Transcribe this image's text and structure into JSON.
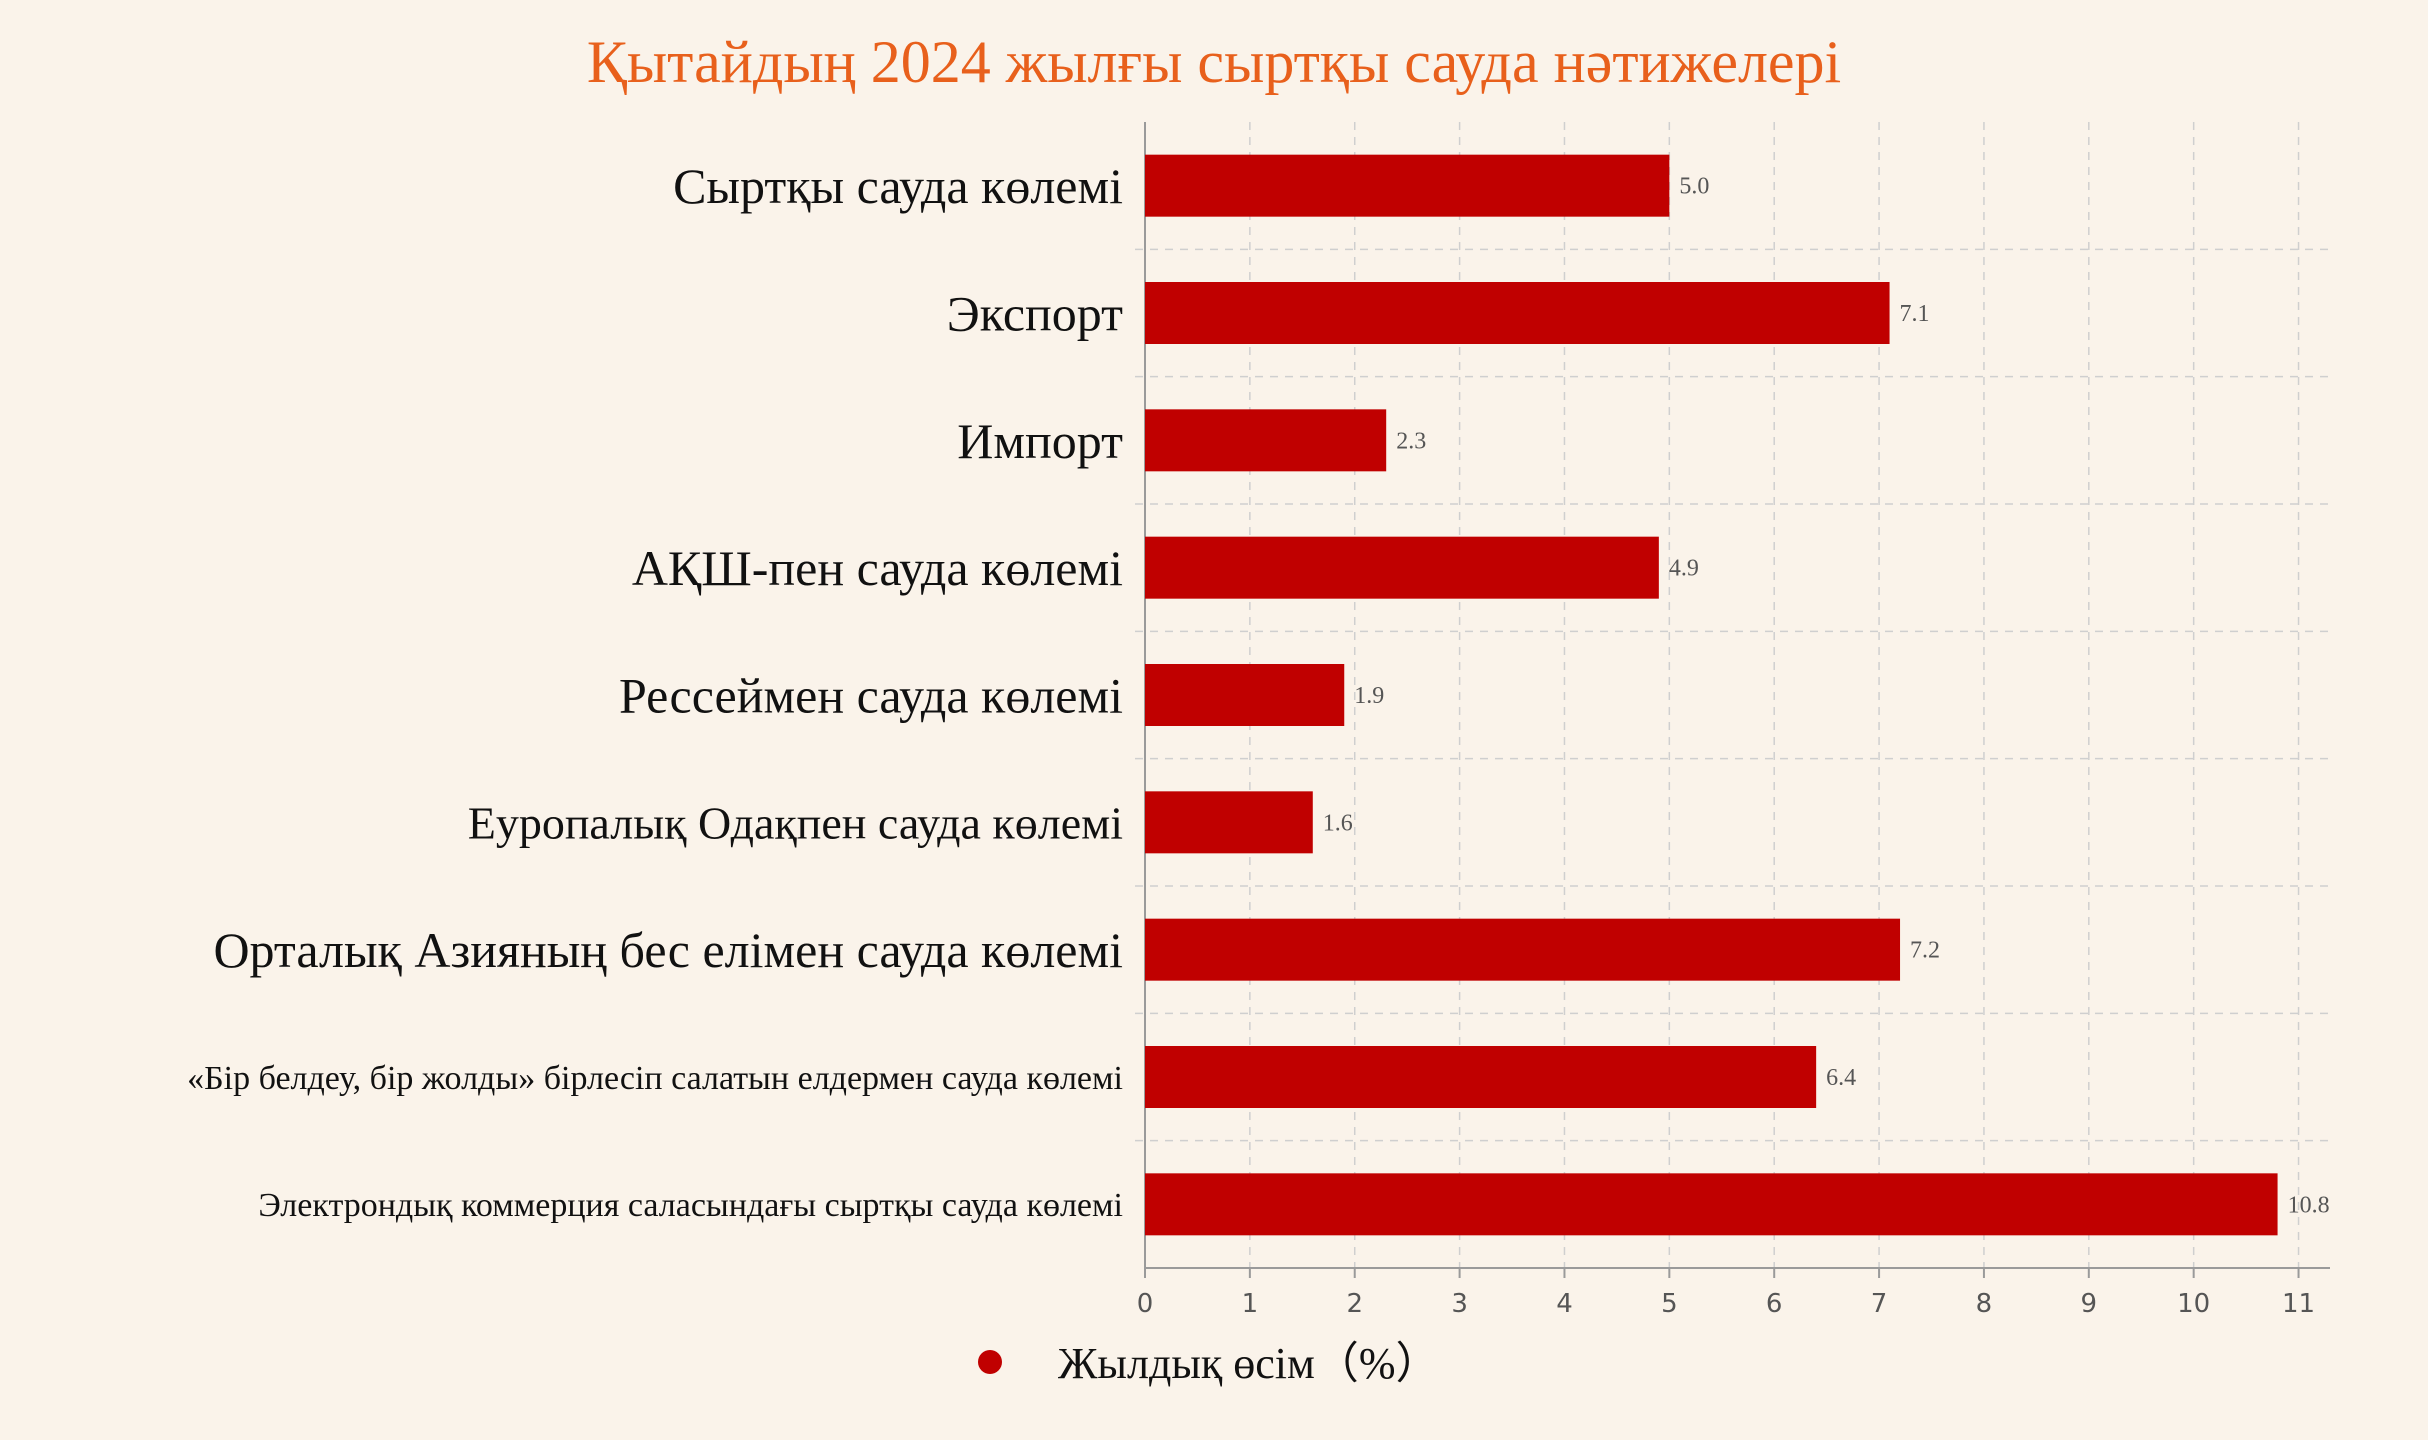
{
  "chart_data": {
    "type": "bar",
    "orientation": "horizontal",
    "title": "Қытайдың 2024 жылғы сыртқы сауда нәтижелері",
    "categories": [
      "Сыртқы сауда көлемі",
      "Экспорт",
      "Импорт",
      "АҚШ-пен сауда көлемі",
      "Рессеймен сауда көлемі",
      "Еуропалық Одақпен сауда көлемі",
      "Орталық Азияның бес елімен сауда көлемі",
      "«Бір белдеу, бір жолды» бірлесіп салатын елдермен сауда көлемі",
      "Электрондық коммерция саласындағы сыртқы сауда көлемі"
    ],
    "series": [
      {
        "name": "Жылдық өсім（%）",
        "values": [
          5.0,
          7.1,
          2.3,
          4.9,
          1.9,
          1.6,
          7.2,
          6.4,
          10.8
        ],
        "value_labels": [
          "5.0",
          "7.1",
          "2.3",
          "4.9",
          "1.9",
          "1.6",
          "7.2",
          "6.4",
          "10.8"
        ]
      }
    ],
    "xlim": [
      0,
      11.3
    ],
    "x_ticks": [
      "0",
      "1",
      "2",
      "3",
      "4",
      "5",
      "6",
      "7",
      "8",
      "9",
      "10",
      "11"
    ],
    "grid": true,
    "legend_position": "bottom-center",
    "bar_color": "#c00000",
    "title_color": "#e8601c",
    "background_color": "#faf3ea"
  }
}
